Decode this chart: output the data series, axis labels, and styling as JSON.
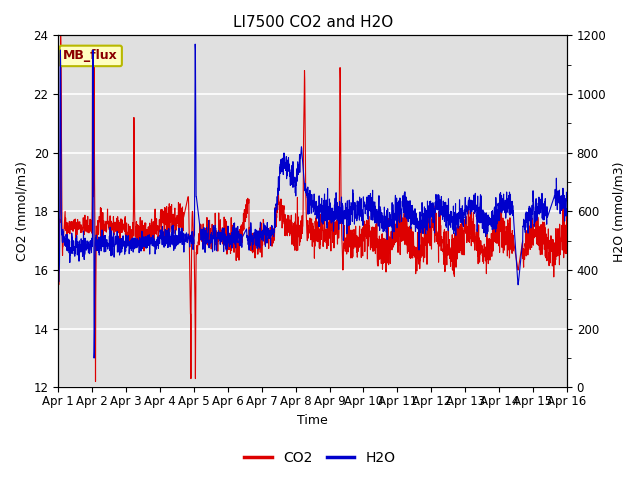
{
  "title": "LI7500 CO2 and H2O",
  "xlabel": "Time",
  "ylabel_left": "CO2 (mmol/m3)",
  "ylabel_right": "H2O (mmol/m3)",
  "co2_ylim": [
    12,
    24
  ],
  "h2o_ylim": [
    0,
    1200
  ],
  "co2_yticks": [
    12,
    14,
    16,
    18,
    20,
    22,
    24
  ],
  "h2o_yticks": [
    0,
    200,
    400,
    600,
    800,
    1000,
    1200
  ],
  "xtick_labels": [
    "Apr 1",
    "Apr 2",
    "Apr 3",
    "Apr 4",
    "Apr 5",
    "Apr 6",
    "Apr 7",
    "Apr 8",
    "Apr 9",
    "Apr 10",
    "Apr 11",
    "Apr 12",
    "Apr 13",
    "Apr 14",
    "Apr 15",
    "Apr 16"
  ],
  "co2_color": "#dd0000",
  "h2o_color": "#0000cc",
  "legend_co2": "CO2",
  "legend_h2o": "H2O",
  "annotation_text": "MB_flux",
  "bg_color": "#e0e0e0",
  "title_fontsize": 11,
  "axis_label_fontsize": 9,
  "tick_fontsize": 8.5
}
